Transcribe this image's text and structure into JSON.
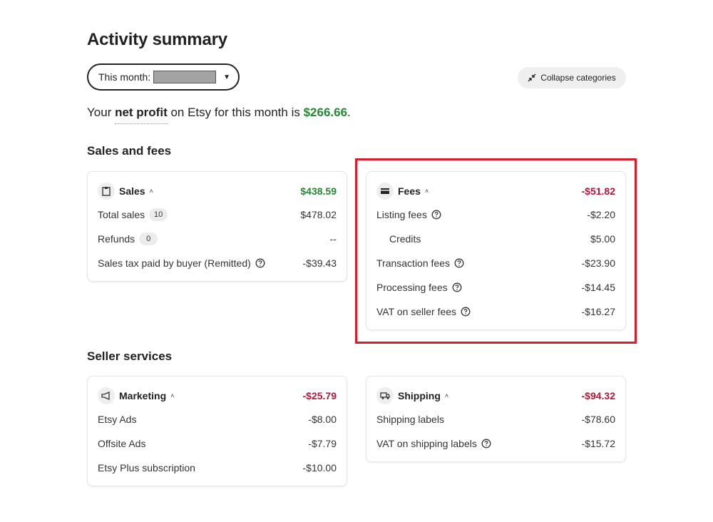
{
  "page": {
    "title": "Activity summary",
    "period_label": "This month:",
    "collapse_label": "Collapse categories",
    "profit_prefix": "Your ",
    "profit_emphasis": "net profit",
    "profit_middle": " on Etsy for this month is ",
    "profit_amount": "$266.66",
    "profit_suffix": "."
  },
  "sections": {
    "sales_fees": "Sales and fees",
    "seller_services": "Seller services"
  },
  "sales": {
    "title": "Sales",
    "total": "$438.59",
    "rows": [
      {
        "label": "Total sales",
        "badge": "10",
        "value": "$478.02"
      },
      {
        "label": "Refunds",
        "badge": "0",
        "value": "--"
      },
      {
        "label": "Sales tax paid by buyer (Remitted)",
        "value": "-$39.43"
      }
    ]
  },
  "fees": {
    "title": "Fees",
    "total": "-$51.82",
    "rows": [
      {
        "label": "Listing fees",
        "value": "-$2.20"
      },
      {
        "label": "Credits",
        "value": "$5.00"
      },
      {
        "label": "Transaction fees",
        "value": "-$23.90"
      },
      {
        "label": "Processing fees",
        "value": "-$14.45"
      },
      {
        "label": "VAT on seller fees",
        "value": "-$16.27"
      }
    ]
  },
  "marketing": {
    "title": "Marketing",
    "total": "-$25.79",
    "rows": [
      {
        "label": "Etsy Ads",
        "value": "-$8.00"
      },
      {
        "label": "Offsite Ads",
        "value": "-$7.79"
      },
      {
        "label": "Etsy Plus subscription",
        "value": "-$10.00"
      }
    ]
  },
  "shipping": {
    "title": "Shipping",
    "total": "-$94.32",
    "rows": [
      {
        "label": "Shipping labels",
        "value": "-$78.60"
      },
      {
        "label": "VAT on shipping labels",
        "value": "-$15.72"
      }
    ]
  },
  "colors": {
    "positive": "#258635",
    "negative": "#b3163b",
    "highlight": "#d4202c"
  },
  "icons": {
    "sales": "clipboard-icon",
    "fees": "card-icon",
    "marketing": "megaphone-icon",
    "shipping": "truck-icon",
    "help": "help-circle-icon",
    "collapse": "collapse-arrows-icon"
  }
}
